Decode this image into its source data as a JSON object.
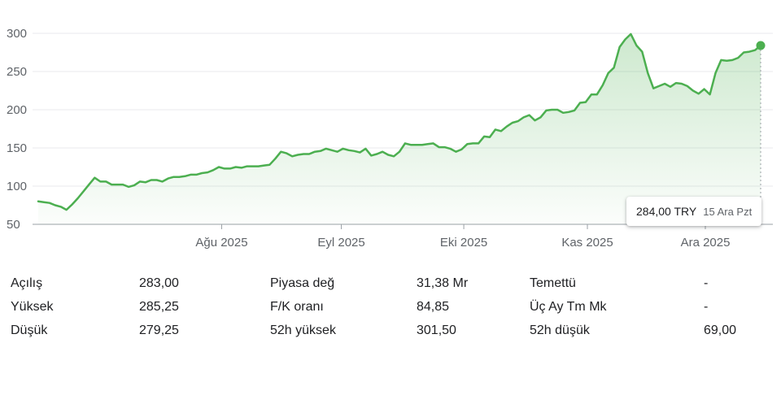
{
  "chart_data": {
    "type": "area",
    "currency": "TRY",
    "x_tick_labels": [
      "Ağu 2025",
      "Eyl 2025",
      "Eki 2025",
      "Kas 2025",
      "Ara 2025"
    ],
    "y_ticks": [
      50,
      100,
      150,
      200,
      250,
      300
    ],
    "ylim": [
      50,
      305
    ],
    "grid": true,
    "color": "#4caf50",
    "values": [
      80,
      79,
      78,
      75,
      73,
      69,
      76,
      84,
      93,
      102,
      111,
      106,
      106,
      102,
      102,
      102,
      99,
      101,
      106,
      105,
      108,
      108,
      106,
      110,
      112,
      112,
      113,
      115,
      115,
      117,
      118,
      121,
      125,
      123,
      123,
      125,
      124,
      126,
      126,
      126,
      127,
      128,
      136,
      145,
      143,
      139,
      141,
      142,
      142,
      145,
      146,
      149,
      147,
      145,
      149,
      147,
      146,
      144,
      149,
      140,
      142,
      145,
      141,
      139,
      145,
      156,
      154,
      154,
      154,
      155,
      156,
      151,
      151,
      149,
      145,
      148,
      155,
      156,
      156,
      165,
      164,
      174,
      172,
      178,
      183,
      185,
      190,
      193,
      186,
      190,
      199,
      200,
      200,
      196,
      197,
      199,
      209,
      210,
      220,
      220,
      232,
      248,
      255,
      282,
      292,
      299,
      284,
      276,
      248,
      228,
      231,
      234,
      230,
      235,
      234,
      231,
      225,
      221,
      227,
      220,
      248,
      265,
      264,
      265,
      268,
      275,
      276,
      278,
      284
    ]
  },
  "tooltip": {
    "price": "284,00 TRY",
    "date": "15 Ara Pzt"
  },
  "stats": [
    [
      {
        "label": "Açılış",
        "value": "283,00"
      },
      {
        "label": "Piyasa değ",
        "value": "31,38 Mr"
      },
      {
        "label": "Temettü",
        "value": "-"
      }
    ],
    [
      {
        "label": "Yüksek",
        "value": "285,25"
      },
      {
        "label": "F/K oranı",
        "value": "84,85"
      },
      {
        "label": "Üç Ay Tm Mk",
        "value": "-"
      }
    ],
    [
      {
        "label": "Düşük",
        "value": "279,25"
      },
      {
        "label": "52h yüksek",
        "value": "301,50"
      },
      {
        "label": "52h düşük",
        "value": "69,00"
      }
    ]
  ]
}
